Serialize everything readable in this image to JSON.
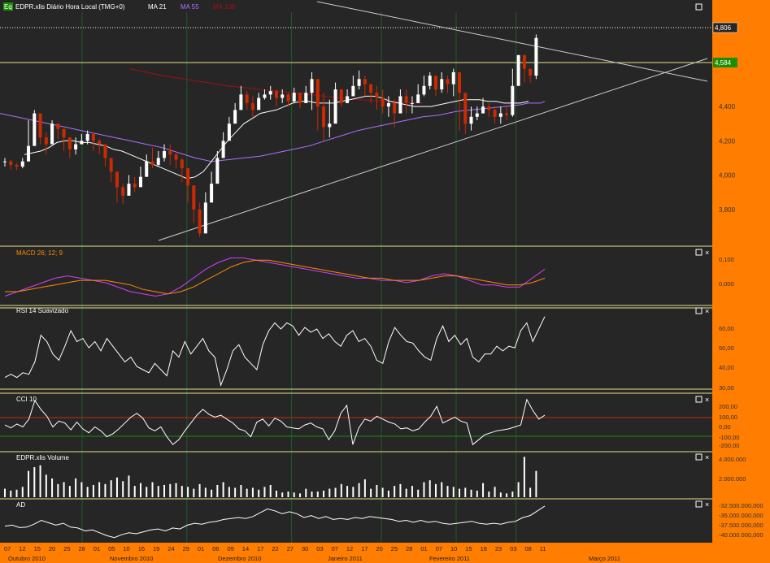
{
  "header": {
    "symbol_icon": "Eq",
    "title": "EDPR.xlis Diário Hora Local (TMG+0)",
    "ma1": "MA 21",
    "ma2": "MA 55",
    "ma3": "MA 100"
  },
  "colors": {
    "background": "#262626",
    "axis_bg": "#ff7d00",
    "price_up": "#ffffff",
    "price_down": "#cc2a00",
    "ma21": "#ffffff",
    "ma55": "#b070ff",
    "ma100": "#a01010",
    "macd": "#d040ff",
    "signal": "#ff8800",
    "frame": "#e6e08a",
    "grid": "#1f5a2a",
    "green_label": "#1a8f00"
  },
  "price_labels": {
    "last": "4,806",
    "level": "4,584"
  },
  "panels": [
    {
      "key": "macd",
      "title": "MACD 26; 12; 9"
    },
    {
      "key": "rsi",
      "title": "RSI 14 Suavizado"
    },
    {
      "key": "cci",
      "title": "CCI 10"
    },
    {
      "key": "volume",
      "title": "EDPR.xlis Volume"
    },
    {
      "key": "ad",
      "title": "AD"
    }
  ],
  "chart_data": [
    {
      "type": "candlestick",
      "title": "EDPR.xlis Diário Hora Local (TMG+0)",
      "y_ticks": [
        "4,400",
        "4,200",
        "4,000",
        "3,800"
      ],
      "ylim": [
        3.6,
        4.95
      ],
      "price": {
        "close": [
          4.08,
          4.06,
          4.05,
          4.08,
          4.17,
          4.36,
          4.22,
          4.18,
          4.3,
          4.27,
          4.22,
          4.15,
          4.18,
          4.2,
          4.24,
          4.2,
          4.18,
          4.1,
          4.02,
          3.93,
          3.88,
          3.95,
          3.93,
          3.99,
          4.08,
          4.06,
          4.1,
          4.14,
          4.12,
          4.09,
          4.04,
          3.94,
          3.8,
          3.66,
          3.84,
          3.95,
          4.1,
          4.2,
          4.3,
          4.38,
          4.47,
          4.42,
          4.38,
          4.45,
          4.47,
          4.49,
          4.45,
          4.47,
          4.43,
          4.48,
          4.42,
          4.48,
          4.56,
          4.4,
          4.28,
          4.3,
          4.5,
          4.42,
          4.46,
          4.52,
          4.56,
          4.53,
          4.48,
          4.45,
          4.4,
          4.42,
          4.36,
          4.46,
          4.42,
          4.42,
          4.47,
          4.52,
          4.58,
          4.5,
          4.56,
          4.53,
          4.6,
          4.48,
          4.3,
          4.34,
          4.36,
          4.4,
          4.38,
          4.34,
          4.36,
          4.35,
          4.52,
          4.7,
          4.62,
          4.58,
          4.8
        ],
        "high": [
          4.1,
          4.09,
          4.07,
          4.1,
          4.32,
          4.38,
          4.34,
          4.25,
          4.32,
          4.3,
          4.27,
          4.22,
          4.22,
          4.24,
          4.26,
          4.25,
          4.21,
          4.16,
          4.1,
          4.0,
          3.95,
          4.0,
          3.99,
          4.05,
          4.12,
          4.16,
          4.14,
          4.18,
          4.18,
          4.14,
          4.1,
          4.04,
          3.94,
          3.84,
          3.9,
          4.02,
          4.14,
          4.25,
          4.34,
          4.42,
          4.52,
          4.49,
          4.46,
          4.48,
          4.5,
          4.52,
          4.5,
          4.5,
          4.48,
          4.51,
          4.48,
          4.52,
          4.6,
          4.52,
          4.48,
          4.44,
          4.54,
          4.48,
          4.5,
          4.58,
          4.61,
          4.58,
          4.53,
          4.52,
          4.5,
          4.46,
          4.44,
          4.5,
          4.5,
          4.46,
          4.53,
          4.58,
          4.6,
          4.58,
          4.6,
          4.58,
          4.62,
          4.6,
          4.44,
          4.4,
          4.4,
          4.45,
          4.42,
          4.4,
          4.4,
          4.4,
          4.62,
          4.7,
          4.68,
          4.62,
          4.82
        ],
        "low": [
          4.05,
          4.03,
          4.03,
          4.04,
          4.08,
          4.26,
          4.18,
          4.12,
          4.22,
          4.21,
          4.14,
          4.1,
          4.12,
          4.18,
          4.18,
          4.14,
          4.12,
          4.05,
          3.96,
          3.84,
          3.83,
          3.9,
          3.9,
          3.95,
          4.02,
          4.04,
          4.05,
          4.08,
          4.06,
          4.04,
          3.96,
          3.84,
          3.72,
          3.64,
          3.8,
          3.9,
          4.04,
          4.15,
          4.26,
          4.34,
          4.42,
          4.38,
          4.34,
          4.4,
          4.44,
          4.44,
          4.4,
          4.42,
          4.4,
          4.42,
          4.39,
          4.44,
          4.38,
          4.26,
          4.2,
          4.22,
          4.4,
          4.4,
          4.42,
          4.46,
          4.5,
          4.46,
          4.42,
          4.38,
          4.36,
          4.34,
          4.28,
          4.4,
          4.36,
          4.36,
          4.42,
          4.46,
          4.5,
          4.46,
          4.48,
          4.48,
          4.46,
          4.26,
          4.24,
          4.26,
          4.32,
          4.36,
          4.34,
          4.3,
          4.3,
          4.32,
          4.34,
          4.56,
          4.54,
          4.54,
          4.56
        ]
      },
      "ma21": [
        4.12,
        4.13,
        4.14,
        4.16,
        4.19,
        4.2,
        4.2,
        4.19,
        4.19,
        4.18,
        4.17,
        4.15,
        4.14,
        4.12,
        4.1,
        4.08,
        4.06,
        4.04,
        4.02,
        4.0,
        3.98,
        3.99,
        4.02,
        4.08,
        4.14,
        4.2,
        4.25,
        4.3,
        4.33,
        4.36,
        4.37,
        4.38,
        4.4,
        4.42,
        4.43,
        4.43,
        4.42,
        4.42,
        4.42,
        4.43,
        4.44,
        4.45,
        4.46,
        4.46,
        4.45,
        4.43,
        4.42,
        4.41,
        4.4,
        4.4,
        4.4,
        4.41,
        4.42,
        4.43,
        4.44,
        4.44,
        4.44,
        4.43,
        4.43,
        4.42,
        4.42,
        4.42,
        4.43
      ],
      "ma21_x": [
        30,
        40,
        50,
        60,
        70,
        80,
        90,
        100,
        110,
        120,
        130,
        140,
        150,
        160,
        170,
        180,
        190,
        200,
        210,
        220,
        230,
        240,
        250,
        260,
        270,
        280,
        290,
        300,
        310,
        320,
        330,
        340,
        350,
        360,
        370,
        380,
        390,
        400,
        410,
        420,
        430,
        440,
        450,
        460,
        470,
        480,
        490,
        500,
        510,
        520,
        530,
        540,
        550,
        560,
        570,
        580,
        590,
        600,
        610,
        620,
        630,
        640,
        650
      ],
      "ma55": [
        4.36,
        4.34,
        4.32,
        4.3,
        4.28,
        4.26,
        4.24,
        4.22,
        4.2,
        4.18,
        4.16,
        4.13,
        4.1,
        4.08,
        4.09,
        4.1,
        4.11,
        4.13,
        4.15,
        4.17,
        4.2,
        4.23,
        4.26,
        4.28,
        4.3,
        4.32,
        4.34,
        4.35,
        4.37,
        4.38,
        4.39,
        4.4,
        4.41,
        4.42,
        4.42,
        4.42,
        4.43
      ],
      "ma55_x": [
        0,
        20,
        40,
        60,
        80,
        100,
        120,
        140,
        160,
        180,
        200,
        220,
        240,
        260,
        280,
        300,
        320,
        340,
        360,
        380,
        400,
        420,
        440,
        460,
        480,
        500,
        520,
        540,
        560,
        580,
        600,
        620,
        640,
        650,
        660,
        665,
        670
      ],
      "ma100": [
        4.62,
        4.58,
        4.55,
        4.52,
        4.5,
        4.48,
        4.46,
        4.44,
        4.43,
        4.42
      ],
      "ma100_x": [
        160,
        200,
        240,
        280,
        320,
        360,
        400,
        440,
        480,
        520
      ]
    },
    {
      "type": "line",
      "title": "MACD 26; 12; 9",
      "y_ticks": [
        "0,100",
        "0,000"
      ],
      "series": [
        {
          "name": "MACD",
          "values": [
            -0.06,
            -0.04,
            -0.02,
            0.0,
            0.02,
            0.03,
            0.02,
            0.01,
            0.0,
            -0.02,
            -0.04,
            -0.05,
            -0.06,
            -0.05,
            -0.02,
            0.02,
            0.06,
            0.09,
            0.11,
            0.11,
            0.1,
            0.09,
            0.08,
            0.07,
            0.06,
            0.05,
            0.04,
            0.03,
            0.02,
            0.02,
            0.01,
            0.01,
            0.0,
            0.01,
            0.03,
            0.04,
            0.03,
            0.01,
            -0.01,
            -0.01,
            -0.02,
            -0.02,
            0.02,
            0.06
          ]
        },
        {
          "name": "Signal",
          "values": [
            -0.04,
            -0.04,
            -0.03,
            -0.02,
            -0.01,
            0.0,
            0.01,
            0.01,
            0.01,
            0.0,
            -0.01,
            -0.03,
            -0.04,
            -0.05,
            -0.04,
            -0.02,
            0.01,
            0.04,
            0.07,
            0.09,
            0.1,
            0.1,
            0.09,
            0.08,
            0.07,
            0.06,
            0.05,
            0.04,
            0.03,
            0.02,
            0.02,
            0.01,
            0.01,
            0.01,
            0.02,
            0.03,
            0.03,
            0.02,
            0.01,
            0.0,
            -0.01,
            -0.01,
            0.0,
            0.02
          ]
        }
      ]
    },
    {
      "type": "line",
      "title": "RSI 14 Suavizado",
      "y_ticks": [
        "60,00",
        "50,00",
        "40,00",
        "30,00"
      ],
      "series": [
        {
          "name": "RSI",
          "values": [
            35,
            37,
            35,
            38,
            37,
            45,
            62,
            58,
            50,
            46,
            55,
            65,
            58,
            60,
            54,
            58,
            52,
            60,
            55,
            50,
            45,
            48,
            42,
            40,
            38,
            44,
            40,
            36,
            52,
            48,
            58,
            50,
            55,
            60,
            52,
            48,
            30,
            40,
            52,
            56,
            48,
            44,
            40,
            56,
            65,
            70,
            66,
            70,
            68,
            62,
            67,
            64,
            66,
            60,
            63,
            58,
            55,
            62,
            65,
            58,
            60,
            55,
            46,
            44,
            58,
            67,
            62,
            58,
            57,
            52,
            48,
            46,
            60,
            68,
            58,
            62,
            56,
            60,
            48,
            45,
            50,
            50,
            55,
            52,
            55,
            54,
            65,
            70,
            58,
            66,
            74
          ]
        }
      ]
    },
    {
      "type": "line",
      "title": "CCI 10",
      "y_ticks": [
        "200,00",
        "100,00",
        "0,00",
        "-100,00",
        "-200,00"
      ],
      "series": [
        {
          "name": "CCI",
          "values": [
            0,
            -30,
            10,
            -20,
            60,
            250,
            160,
            90,
            -20,
            40,
            20,
            -50,
            30,
            -40,
            -80,
            -20,
            -60,
            -120,
            -90,
            -40,
            20,
            80,
            120,
            70,
            -30,
            -60,
            -20,
            -120,
            -200,
            -150,
            -60,
            20,
            100,
            160,
            110,
            80,
            100,
            60,
            20,
            -40,
            -60,
            -120,
            30,
            60,
            -10,
            70,
            40,
            -20,
            -30,
            -40,
            0,
            20,
            -20,
            -40,
            -150,
            -60,
            120,
            200,
            -200,
            -30,
            60,
            40,
            90,
            60,
            30,
            10,
            -40,
            -30,
            -60,
            -40,
            30,
            90,
            190,
            20,
            50,
            80,
            40,
            20,
            -200,
            -150,
            -100,
            -80,
            -60,
            -50,
            -40,
            -20,
            0,
            260,
            150,
            60,
            100
          ]
        }
      ]
    },
    {
      "type": "bar",
      "title": "EDPR.xlis Volume",
      "y_ticks": [
        "4.000.000",
        "2.000.000"
      ],
      "series": [
        {
          "name": "Volume",
          "values": [
            0.9,
            0.7,
            0.8,
            1.1,
            2.8,
            3.2,
            3.4,
            2.4,
            2.0,
            1.4,
            1.6,
            1.2,
            2.0,
            1.6,
            1.1,
            1.3,
            1.6,
            1.4,
            1.8,
            2.1,
            1.7,
            2.3,
            1.2,
            1.5,
            1.1,
            1.6,
            1.2,
            1.3,
            1.4,
            1.5,
            1.2,
            1.1,
            0.9,
            1.4,
            1.0,
            0.8,
            1.3,
            1.6,
            1.1,
            1.0,
            1.3,
            0.9,
            1.0,
            0.8,
            1.1,
            1.3,
            0.7,
            0.5,
            0.6,
            0.5,
            0.4,
            0.9,
            0.6,
            0.6,
            0.7,
            0.9,
            1.0,
            1.4,
            1.2,
            1.1,
            1.5,
            1.9,
            0.9,
            1.3,
            1.0,
            0.7,
            1.2,
            1.4,
            0.9,
            1.2,
            0.8,
            1.6,
            1.8,
            1.4,
            1.6,
            1.2,
            1.1,
            0.9,
            1.0,
            0.8,
            0.7,
            1.5,
            0.6,
            1.1,
            0.5,
            0.4,
            0.6,
            1.6,
            4.3,
            1.0,
            2.8
          ]
        }
      ]
    },
    {
      "type": "line",
      "title": "AD",
      "y_ticks": [
        "-32.500.000,000",
        "-35.000.000,000",
        "-37.500.000,000",
        "-40.000.000,000"
      ],
      "series": [
        {
          "name": "AD",
          "values": [
            -37.2,
            -37.0,
            -37.5,
            -37.4,
            -36.8,
            -36.0,
            -36.5,
            -37.0,
            -36.6,
            -37.4,
            -37.6,
            -38.2,
            -38.0,
            -38.6,
            -39.2,
            -39.6,
            -39.0,
            -38.6,
            -38.8,
            -38.4,
            -38.0,
            -37.8,
            -38.2,
            -37.6,
            -37.8,
            -37.0,
            -36.6,
            -36.8,
            -36.4,
            -36.2,
            -35.8,
            -35.6,
            -35.4,
            -35.6,
            -35.2,
            -34.4,
            -33.6,
            -34.0,
            -34.6,
            -34.2,
            -34.6,
            -35.4,
            -35.0,
            -35.6,
            -35.2,
            -35.8,
            -35.6,
            -35.8,
            -35.4,
            -35.6,
            -35.2,
            -35.4,
            -35.6,
            -35.8,
            -36.2,
            -36.0,
            -36.4,
            -36.0,
            -36.4,
            -36.2,
            -36.6,
            -36.8,
            -36.6,
            -36.4,
            -36.2,
            -36.6,
            -36.8,
            -36.6,
            -36.8,
            -36.4,
            -36.2,
            -35.4,
            -35.0,
            -34.0,
            -33.0
          ]
        }
      ]
    }
  ],
  "x_axis": {
    "day_labels": [
      "07",
      "12",
      "15",
      "20",
      "25",
      "28",
      "01",
      "05",
      "10",
      "16",
      "19",
      "24",
      "29",
      "01",
      "06",
      "09",
      "14",
      "17",
      "22",
      "27",
      "30",
      "03",
      "07",
      "12",
      "17",
      "20",
      "25",
      "28",
      "01",
      "07",
      "10",
      "15",
      "18",
      "23",
      "03",
      "08",
      "11"
    ],
    "month_labels": [
      "Outubro 2010",
      "Novembro 2010",
      "Dezembro 2010",
      "Janeiro 2011",
      "Fevereiro 2011",
      "Março 2011"
    ]
  }
}
